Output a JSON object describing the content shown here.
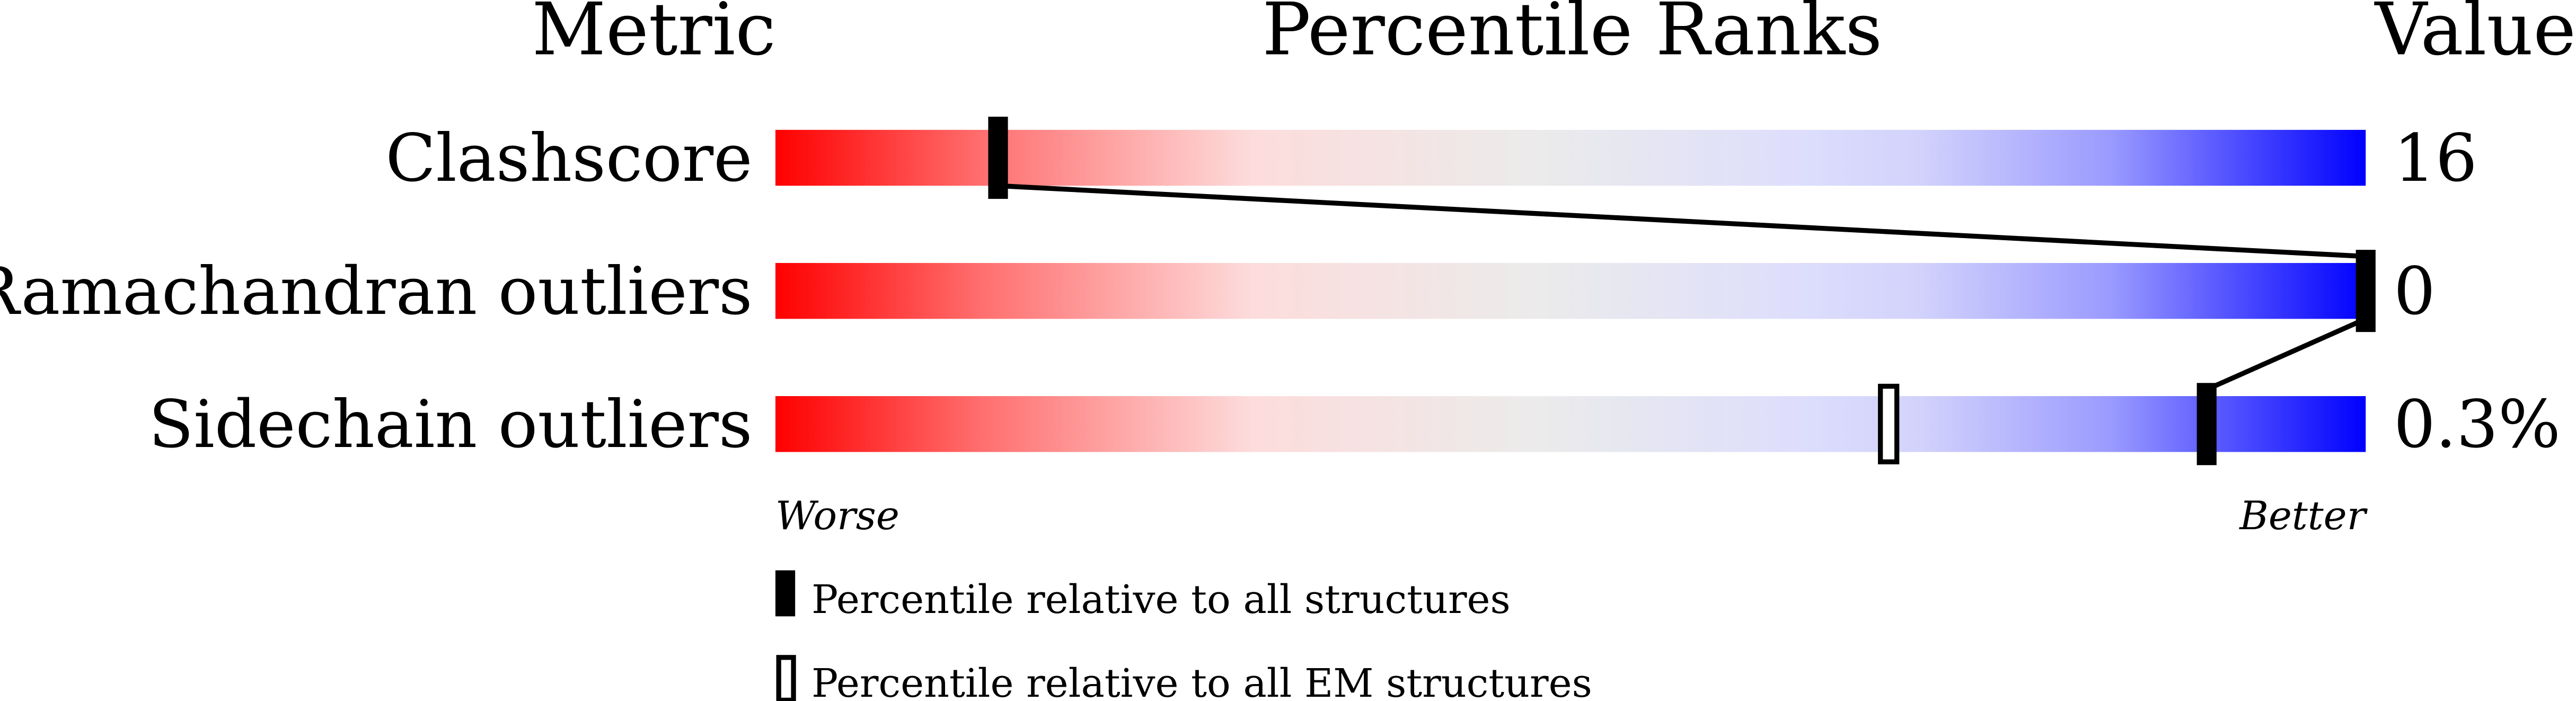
{
  "chart_data": {
    "type": "percentile-bar",
    "headers": {
      "metric": "Metric",
      "ranks": "Percentile Ranks",
      "value": "Value"
    },
    "xlim": [
      0,
      100
    ],
    "axis_labels": {
      "left": "Worse",
      "right": "Better"
    },
    "gradient_colors": [
      "#ff0000",
      "#fde0e0",
      "#ebebeb",
      "#dedefc",
      "#0000ff"
    ],
    "metrics": [
      {
        "name": "Clashscore",
        "value": "16",
        "percentile_all": 14,
        "percentile_em": null
      },
      {
        "name": "Ramachandran outliers",
        "value": "0",
        "percentile_all": 100,
        "percentile_em": null
      },
      {
        "name": "Sidechain outliers",
        "value": "0.3%",
        "percentile_all": 90,
        "percentile_em": 70
      }
    ],
    "legend": [
      {
        "marker": "filled",
        "label": "Percentile relative to all structures"
      },
      {
        "marker": "open",
        "label": "Percentile relative to all EM structures"
      }
    ]
  }
}
